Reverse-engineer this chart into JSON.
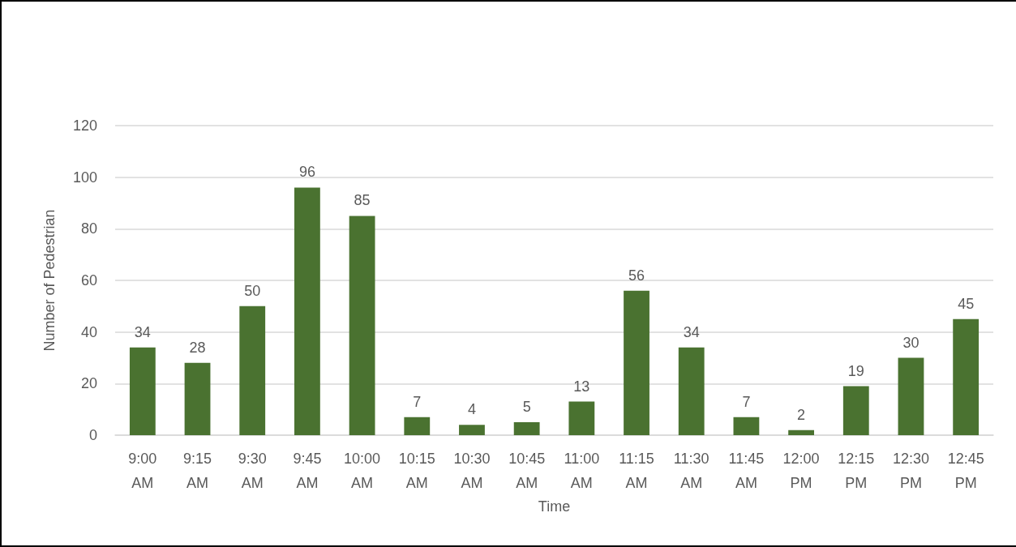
{
  "chart_data": {
    "type": "bar",
    "xlabel": "Time",
    "ylabel": "Number of Pedestrian",
    "categories": [
      "9:00 AM",
      "9:15 AM",
      "9:30 AM",
      "9:45 AM",
      "10:00 AM",
      "10:15 AM",
      "10:30 AM",
      "10:45 AM",
      "11:00 AM",
      "11:15 AM",
      "11:30 AM",
      "11:45 AM",
      "12:00 PM",
      "12:15 PM",
      "12:30 PM",
      "12:45 PM"
    ],
    "values": [
      34,
      28,
      50,
      96,
      85,
      7,
      4,
      5,
      13,
      56,
      34,
      7,
      2,
      19,
      30,
      45
    ],
    "color": "#4a7230",
    "ylim": [
      0,
      120
    ],
    "yticks": [
      0,
      20,
      40,
      60,
      80,
      100,
      120
    ],
    "grid": "y",
    "data_labels": true
  }
}
